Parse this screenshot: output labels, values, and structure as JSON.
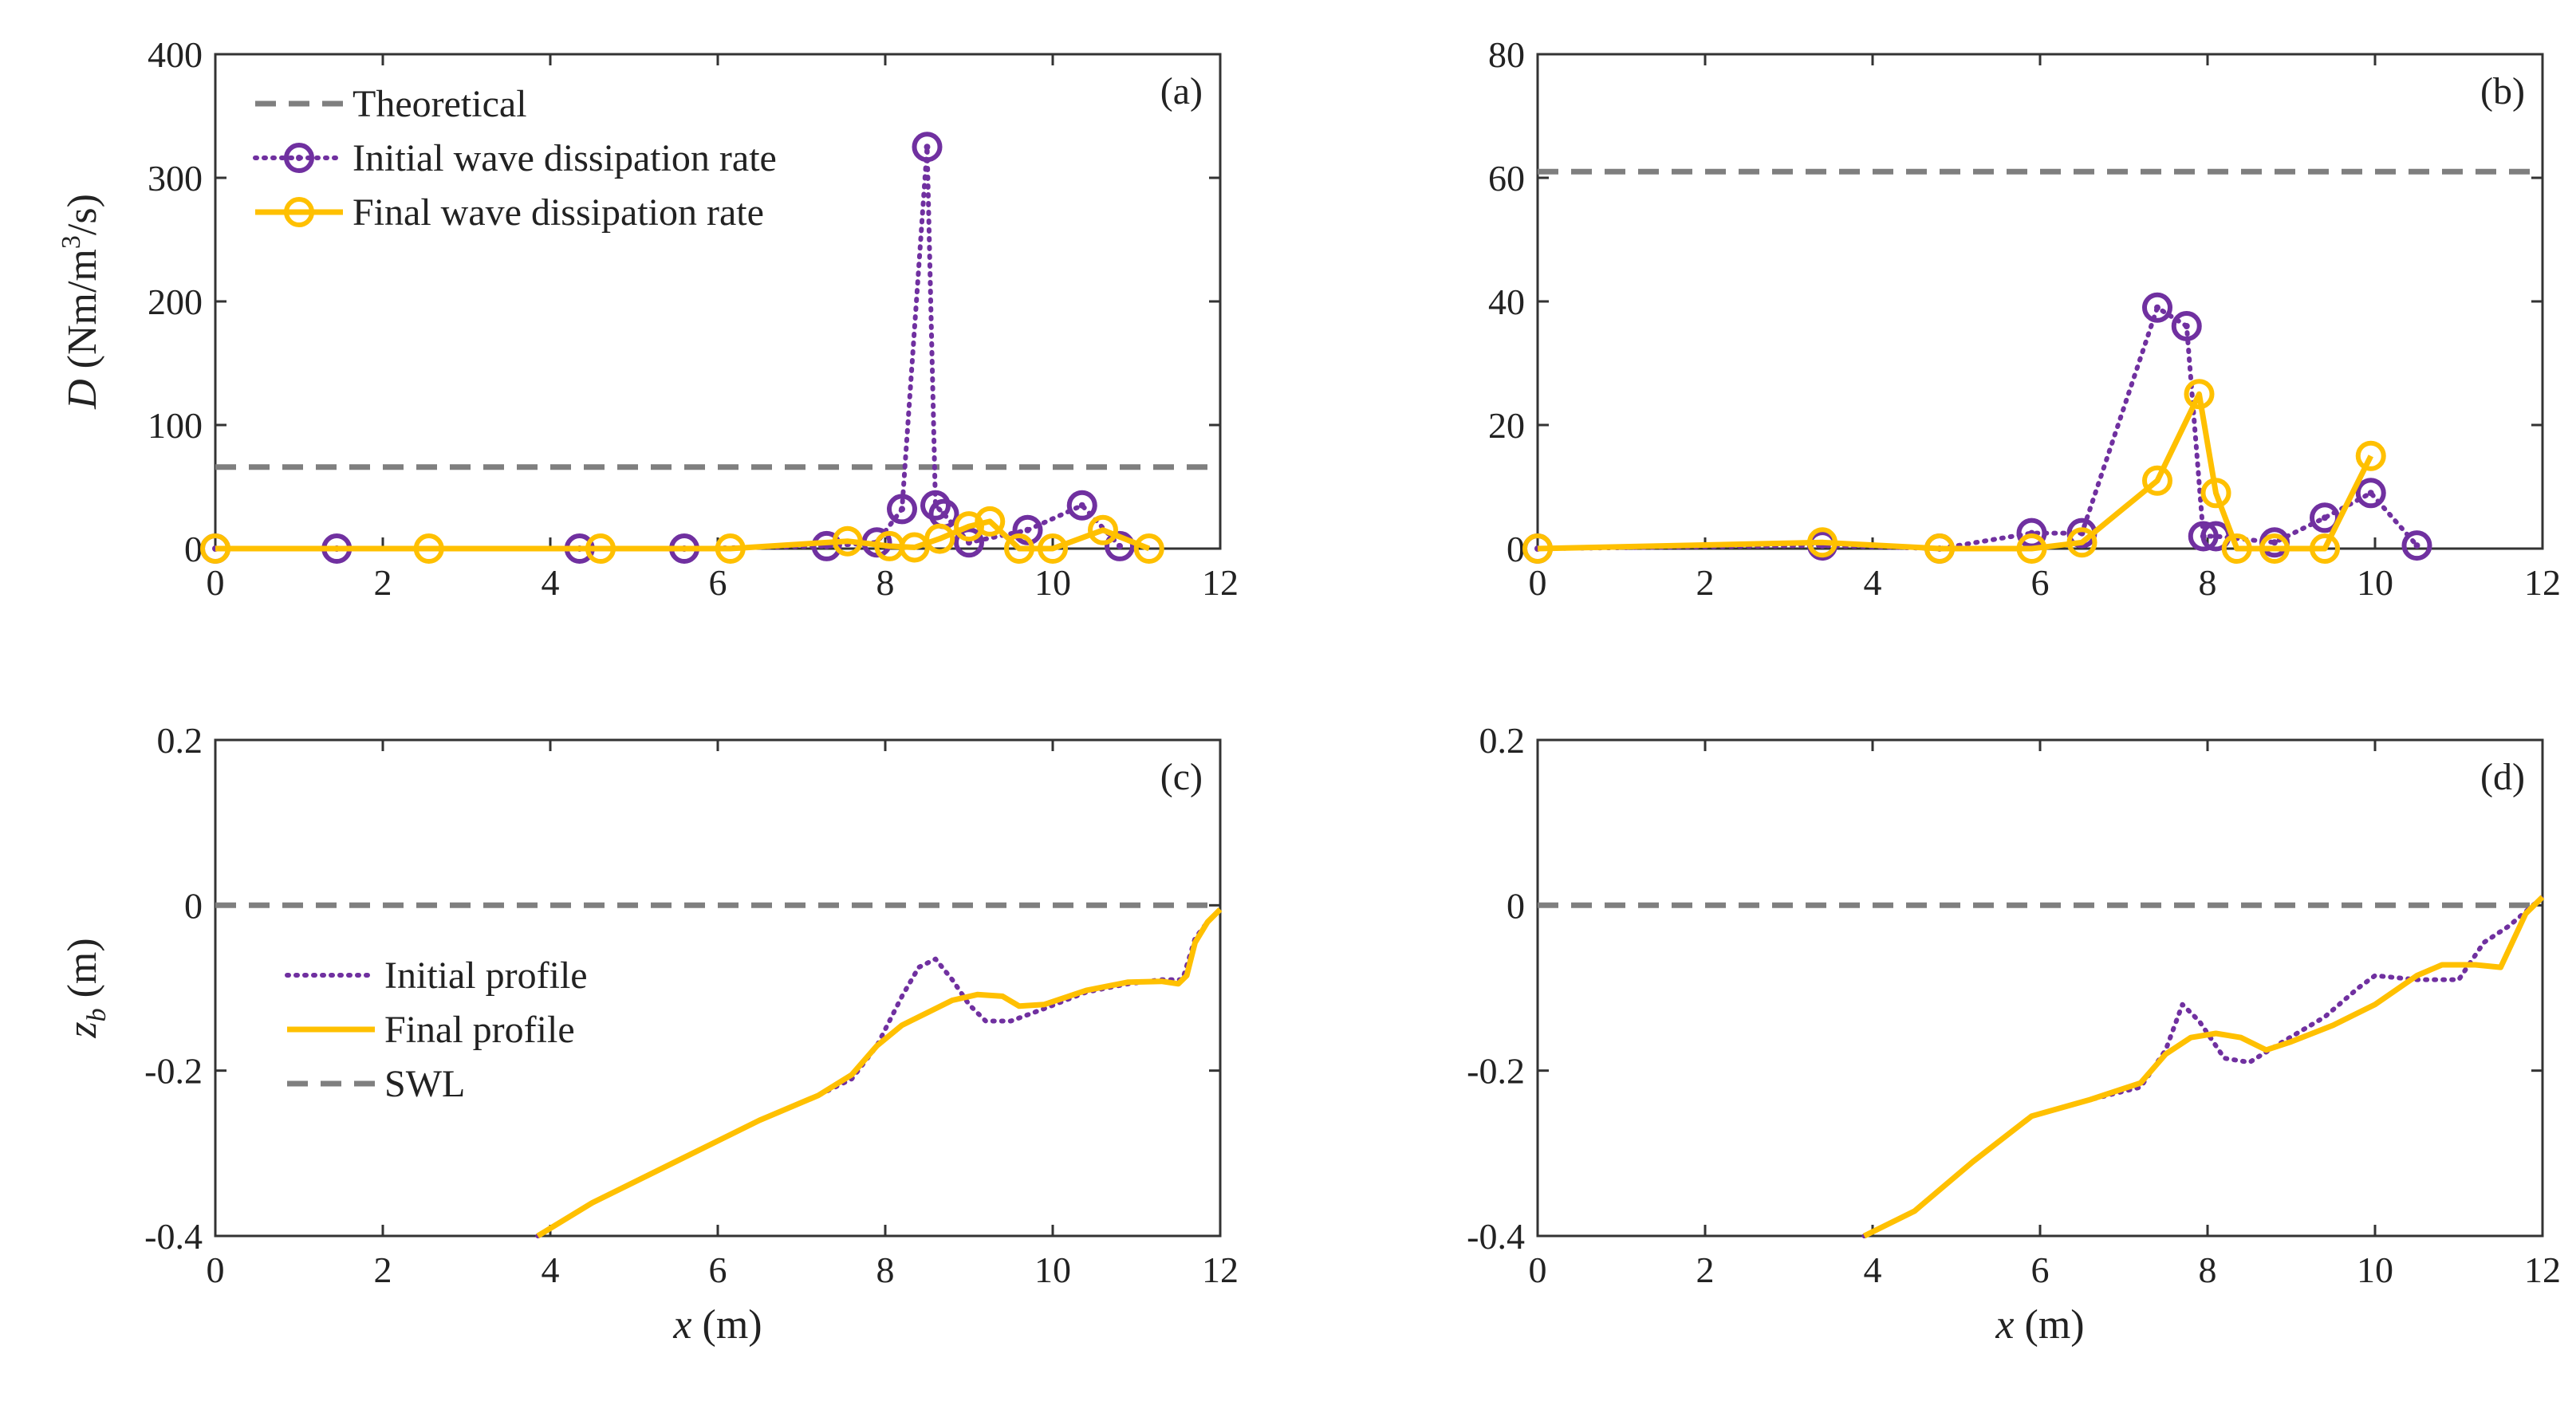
{
  "colors": {
    "purple": "#7030A0",
    "yellow": "#FFC000",
    "gray": "#7F7F7F"
  },
  "chart_data": [
    {
      "type": "line",
      "panel_label": "(a)",
      "xlabel": "",
      "ylabel": {
        "symbol": "D",
        "unit_pre": " (Nm/m",
        "unit_exp": "3",
        "unit_post": "/s)"
      },
      "xlim": [
        0,
        12
      ],
      "ylim": [
        0,
        400
      ],
      "xticks": [
        "0",
        "2",
        "4",
        "6",
        "8",
        "10",
        "12"
      ],
      "yticks": [
        "0",
        "100",
        "200",
        "300",
        "400"
      ],
      "legend": {
        "position": "top-left",
        "entries": [
          "Theoretical",
          "Initial wave dissipation rate",
          "Final wave dissipation rate"
        ]
      },
      "series": [
        {
          "name": "Theoretical",
          "style": "dashed",
          "color": "gray",
          "x": [
            0,
            12
          ],
          "y": [
            66,
            66
          ]
        },
        {
          "name": "Initial wave dissipation rate",
          "style": "dotted",
          "color": "purple",
          "marker": "circle-dot",
          "x": [
            0,
            1.45,
            4.35,
            5.6,
            7.3,
            7.9,
            8.2,
            8.5,
            8.6,
            8.7,
            9.0,
            9.7,
            10.35,
            10.8
          ],
          "y": [
            0,
            0,
            0,
            0,
            2,
            5,
            32,
            325,
            35,
            28,
            5,
            15,
            35,
            2
          ]
        },
        {
          "name": "Final wave dissipation rate",
          "style": "solid",
          "color": "yellow",
          "marker": "circle",
          "x": [
            0,
            2.55,
            4.6,
            6.15,
            7.55,
            8.05,
            8.35,
            8.65,
            9.0,
            9.25,
            9.6,
            10.0,
            10.6,
            11.15
          ],
          "y": [
            0,
            0,
            0,
            0,
            6,
            2,
            1,
            8,
            18,
            22,
            0,
            0,
            15,
            0
          ]
        }
      ]
    },
    {
      "type": "line",
      "panel_label": "(b)",
      "xlabel": "",
      "xlim": [
        0,
        12
      ],
      "ylim": [
        0,
        80
      ],
      "xticks": [
        "0",
        "2",
        "4",
        "6",
        "8",
        "10",
        "12"
      ],
      "yticks": [
        "0",
        "20",
        "40",
        "60",
        "80"
      ],
      "series": [
        {
          "name": "Theoretical",
          "style": "dashed",
          "color": "gray",
          "x": [
            0,
            12
          ],
          "y": [
            61,
            61
          ]
        },
        {
          "name": "Initial wave dissipation rate",
          "style": "dotted",
          "color": "purple",
          "marker": "circle-dot",
          "x": [
            0,
            3.4,
            4.8,
            5.9,
            6.5,
            7.4,
            7.75,
            7.95,
            8.1,
            8.8,
            9.4,
            9.95,
            10.5
          ],
          "y": [
            0,
            0.5,
            0,
            2.5,
            2.5,
            39,
            36,
            2,
            2,
            1,
            5,
            9,
            0.5
          ]
        },
        {
          "name": "Final wave dissipation rate",
          "style": "solid",
          "color": "yellow",
          "marker": "circle",
          "x": [
            0,
            3.4,
            4.8,
            5.9,
            6.5,
            7.4,
            7.9,
            8.1,
            8.35,
            8.8,
            9.4,
            9.95
          ],
          "y": [
            0,
            1,
            0,
            0,
            1,
            11,
            25,
            9,
            0,
            0,
            0,
            15
          ]
        }
      ]
    },
    {
      "type": "line",
      "panel_label": "(c)",
      "xlabel": {
        "symbol": "x",
        "unit": " (m)"
      },
      "ylabel": {
        "symbol": "z",
        "sub": "b",
        "unit": " (m)"
      },
      "xlim": [
        0,
        12
      ],
      "ylim": [
        -0.4,
        0.2
      ],
      "xticks": [
        "0",
        "2",
        "4",
        "6",
        "8",
        "10",
        "12"
      ],
      "yticks": [
        "-0.4",
        "-0.2",
        "0",
        "0.2"
      ],
      "legend": {
        "position": "center-left",
        "entries": [
          "Initial profile",
          "Final profile",
          "SWL"
        ]
      },
      "series": [
        {
          "name": "SWL",
          "style": "dashed",
          "color": "gray",
          "x": [
            0,
            12
          ],
          "y": [
            0,
            0
          ]
        },
        {
          "name": "Initial profile",
          "style": "dotted",
          "color": "purple",
          "x": [
            3.85,
            4.5,
            5.5,
            6.5,
            7.2,
            7.6,
            7.9,
            8.2,
            8.4,
            8.6,
            8.8,
            9.0,
            9.2,
            9.5,
            9.9,
            10.4,
            10.9,
            11.3,
            11.55,
            11.7,
            11.85,
            12.0
          ],
          "y": [
            -0.4,
            -0.36,
            -0.31,
            -0.26,
            -0.23,
            -0.21,
            -0.17,
            -0.11,
            -0.075,
            -0.065,
            -0.09,
            -0.12,
            -0.14,
            -0.14,
            -0.125,
            -0.105,
            -0.095,
            -0.09,
            -0.09,
            -0.04,
            -0.02,
            -0.005
          ]
        },
        {
          "name": "Final profile",
          "style": "solid",
          "color": "yellow",
          "x": [
            3.85,
            4.5,
            5.5,
            6.5,
            7.2,
            7.6,
            7.9,
            8.2,
            8.5,
            8.8,
            9.1,
            9.4,
            9.6,
            9.9,
            10.4,
            10.9,
            11.3,
            11.5,
            11.6,
            11.7,
            11.85,
            12.0
          ],
          "y": [
            -0.4,
            -0.36,
            -0.31,
            -0.26,
            -0.23,
            -0.205,
            -0.17,
            -0.145,
            -0.13,
            -0.115,
            -0.108,
            -0.11,
            -0.122,
            -0.12,
            -0.103,
            -0.093,
            -0.092,
            -0.095,
            -0.085,
            -0.045,
            -0.02,
            -0.005
          ]
        }
      ]
    },
    {
      "type": "line",
      "panel_label": "(d)",
      "xlabel": {
        "symbol": "x",
        "unit": " (m)"
      },
      "xlim": [
        0,
        12
      ],
      "ylim": [
        -0.4,
        0.2
      ],
      "xticks": [
        "0",
        "2",
        "4",
        "6",
        "8",
        "10",
        "12"
      ],
      "yticks": [
        "-0.4",
        "-0.2",
        "0",
        "0.2"
      ],
      "series": [
        {
          "name": "SWL",
          "style": "dashed",
          "color": "gray",
          "x": [
            0,
            12
          ],
          "y": [
            0,
            0
          ]
        },
        {
          "name": "Initial profile",
          "style": "dotted",
          "color": "purple",
          "x": [
            3.9,
            4.5,
            5.2,
            5.9,
            6.6,
            7.2,
            7.5,
            7.7,
            7.9,
            8.2,
            8.5,
            8.9,
            9.4,
            9.8,
            10.0,
            10.5,
            11.0,
            11.3,
            11.6,
            12.0
          ],
          "y": [
            -0.4,
            -0.37,
            -0.31,
            -0.255,
            -0.235,
            -0.22,
            -0.175,
            -0.12,
            -0.14,
            -0.185,
            -0.19,
            -0.165,
            -0.135,
            -0.1,
            -0.085,
            -0.09,
            -0.09,
            -0.045,
            -0.025,
            0.01
          ]
        },
        {
          "name": "Final profile",
          "style": "solid",
          "color": "yellow",
          "x": [
            3.9,
            4.5,
            5.2,
            5.9,
            6.6,
            7.2,
            7.5,
            7.8,
            8.1,
            8.4,
            8.7,
            9.0,
            9.5,
            10.0,
            10.5,
            10.8,
            11.2,
            11.5,
            11.8,
            12.0
          ],
          "y": [
            -0.4,
            -0.37,
            -0.31,
            -0.255,
            -0.235,
            -0.215,
            -0.18,
            -0.16,
            -0.155,
            -0.16,
            -0.175,
            -0.165,
            -0.145,
            -0.12,
            -0.085,
            -0.072,
            -0.072,
            -0.075,
            -0.01,
            0.01
          ]
        }
      ]
    }
  ]
}
